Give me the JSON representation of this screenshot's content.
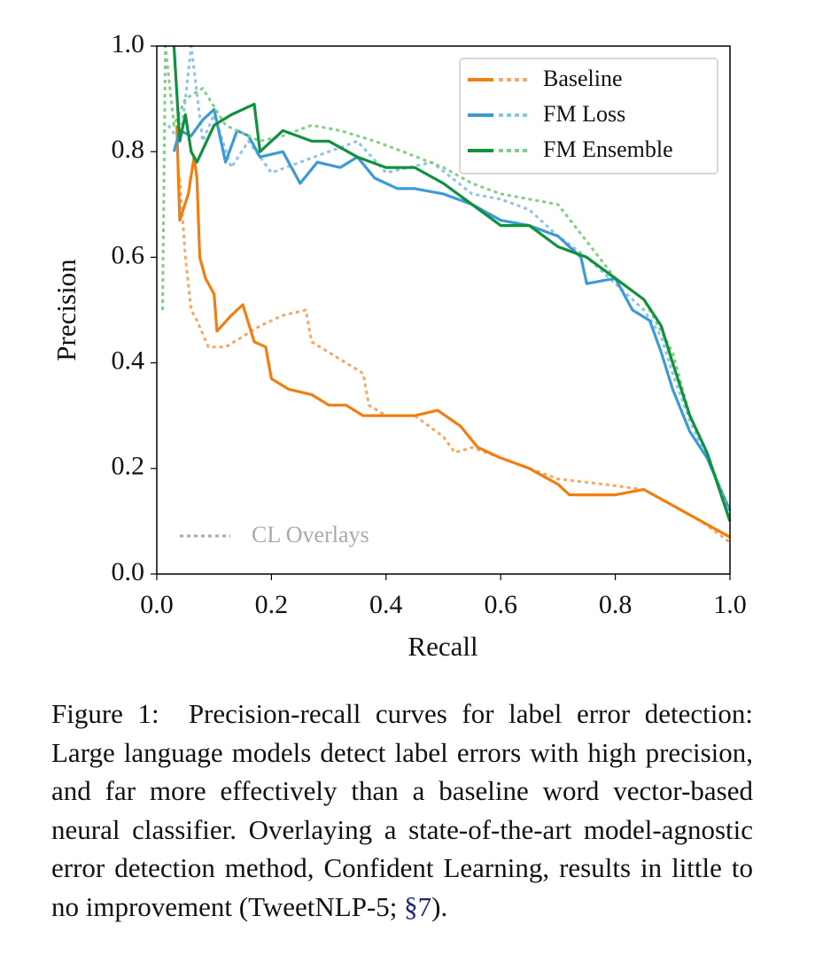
{
  "chart_data": {
    "type": "line",
    "xlabel": "Recall",
    "ylabel": "Precision",
    "xlim": [
      0,
      1
    ],
    "ylim": [
      0,
      1
    ],
    "xticks": [
      {
        "value": 0,
        "label": "0.0"
      },
      0.2,
      0.4,
      0.6,
      0.8,
      {
        "value": 1,
        "label": "1.0"
      }
    ],
    "yticks": [
      {
        "value": 0,
        "label": "0.0"
      },
      0.2,
      0.4,
      0.6,
      0.8,
      {
        "value": 1,
        "label": "1.0"
      }
    ],
    "legend": "upper right",
    "annotation": "CL Overlays",
    "annotation_color": "#aaaaaa",
    "series": [
      {
        "name": "Baseline",
        "color": "#f07f10",
        "cl_color": "#f5a866",
        "x": [
          0.035,
          0.04,
          0.055,
          0.065,
          0.07,
          0.075,
          0.085,
          0.1,
          0.105,
          0.13,
          0.15,
          0.17,
          0.19,
          0.2,
          0.23,
          0.27,
          0.3,
          0.33,
          0.36,
          0.4,
          0.45,
          0.49,
          0.53,
          0.56,
          0.6,
          0.65,
          0.7,
          0.72,
          0.8,
          0.85,
          0.9,
          0.95,
          1.0
        ],
        "values": [
          0.85,
          0.67,
          0.72,
          0.79,
          0.75,
          0.6,
          0.56,
          0.53,
          0.46,
          0.49,
          0.51,
          0.44,
          0.43,
          0.37,
          0.35,
          0.34,
          0.32,
          0.32,
          0.3,
          0.3,
          0.3,
          0.31,
          0.28,
          0.24,
          0.22,
          0.2,
          0.17,
          0.15,
          0.15,
          0.16,
          0.13,
          0.1,
          0.07
        ],
        "cl_x": [
          0.04,
          0.05,
          0.06,
          0.07,
          0.09,
          0.12,
          0.15,
          0.18,
          0.22,
          0.26,
          0.27,
          0.3,
          0.33,
          0.36,
          0.37,
          0.4,
          0.45,
          0.5,
          0.52,
          0.55,
          0.6,
          0.65,
          0.7,
          0.78,
          0.85,
          0.9,
          0.95,
          1.0
        ],
        "cl_values": [
          0.75,
          0.6,
          0.5,
          0.48,
          0.43,
          0.43,
          0.45,
          0.47,
          0.49,
          0.5,
          0.44,
          0.42,
          0.4,
          0.38,
          0.32,
          0.3,
          0.3,
          0.26,
          0.23,
          0.24,
          0.22,
          0.2,
          0.18,
          0.17,
          0.16,
          0.13,
          0.1,
          0.06
        ]
      },
      {
        "name": "FM Loss",
        "color": "#3a9bd5",
        "cl_color": "#8ec4e8",
        "x": [
          0.03,
          0.04,
          0.06,
          0.08,
          0.1,
          0.12,
          0.14,
          0.16,
          0.18,
          0.22,
          0.25,
          0.28,
          0.32,
          0.35,
          0.38,
          0.42,
          0.45,
          0.5,
          0.55,
          0.6,
          0.65,
          0.7,
          0.74,
          0.75,
          0.8,
          0.83,
          0.86,
          0.88,
          0.9,
          0.93,
          0.96,
          1.0
        ],
        "values": [
          0.8,
          0.84,
          0.83,
          0.86,
          0.88,
          0.78,
          0.84,
          0.83,
          0.79,
          0.8,
          0.74,
          0.78,
          0.77,
          0.79,
          0.75,
          0.73,
          0.73,
          0.72,
          0.7,
          0.67,
          0.66,
          0.64,
          0.6,
          0.55,
          0.56,
          0.5,
          0.48,
          0.42,
          0.35,
          0.27,
          0.22,
          0.12
        ],
        "cl_x": [
          0.02,
          0.04,
          0.05,
          0.06,
          0.08,
          0.1,
          0.13,
          0.16,
          0.2,
          0.25,
          0.3,
          0.35,
          0.4,
          0.48,
          0.55,
          0.6,
          0.65,
          0.7,
          0.75,
          0.8,
          0.85,
          0.88,
          0.9,
          0.93,
          0.96,
          1.0
        ],
        "cl_values": [
          0.85,
          0.82,
          0.9,
          1.0,
          0.82,
          0.87,
          0.77,
          0.82,
          0.76,
          0.78,
          0.8,
          0.82,
          0.76,
          0.78,
          0.72,
          0.71,
          0.69,
          0.64,
          0.6,
          0.55,
          0.5,
          0.45,
          0.38,
          0.29,
          0.22,
          0.12
        ]
      },
      {
        "name": "FM Ensemble",
        "color": "#11913e",
        "cl_color": "#82cf84",
        "x": [
          0.03,
          0.04,
          0.05,
          0.06,
          0.07,
          0.1,
          0.13,
          0.17,
          0.18,
          0.22,
          0.27,
          0.3,
          0.35,
          0.4,
          0.45,
          0.5,
          0.55,
          0.6,
          0.65,
          0.7,
          0.75,
          0.8,
          0.85,
          0.88,
          0.9,
          0.93,
          0.96,
          1.0
        ],
        "values": [
          1.0,
          0.82,
          0.87,
          0.8,
          0.78,
          0.85,
          0.87,
          0.89,
          0.8,
          0.84,
          0.82,
          0.82,
          0.79,
          0.77,
          0.77,
          0.74,
          0.7,
          0.66,
          0.66,
          0.62,
          0.6,
          0.56,
          0.52,
          0.47,
          0.4,
          0.3,
          0.23,
          0.1
        ],
        "cl_x": [
          0.01,
          0.015,
          0.03,
          0.05,
          0.08,
          0.12,
          0.18,
          0.22,
          0.27,
          0.32,
          0.38,
          0.43,
          0.5,
          0.55,
          0.6,
          0.65,
          0.7,
          0.75,
          0.8,
          0.85,
          0.9,
          0.93,
          0.96,
          1.0
        ],
        "cl_values": [
          0.5,
          1.0,
          0.85,
          0.9,
          0.92,
          0.85,
          0.82,
          0.83,
          0.85,
          0.84,
          0.82,
          0.8,
          0.77,
          0.74,
          0.72,
          0.71,
          0.7,
          0.63,
          0.56,
          0.52,
          0.42,
          0.3,
          0.23,
          0.11
        ]
      }
    ]
  },
  "caption": {
    "label": "Figure 1:",
    "text": "Precision-recall curves for label error detection: Large language models detect label errors with high precision, and far more effectively than a baseline word vector-based neural classifier. Overlaying a state-of-the-art model-agnostic error detection method, Confident Learning, results in little to no improvement (TweetNLP-5; ",
    "ref": "§7",
    "end": ")."
  }
}
